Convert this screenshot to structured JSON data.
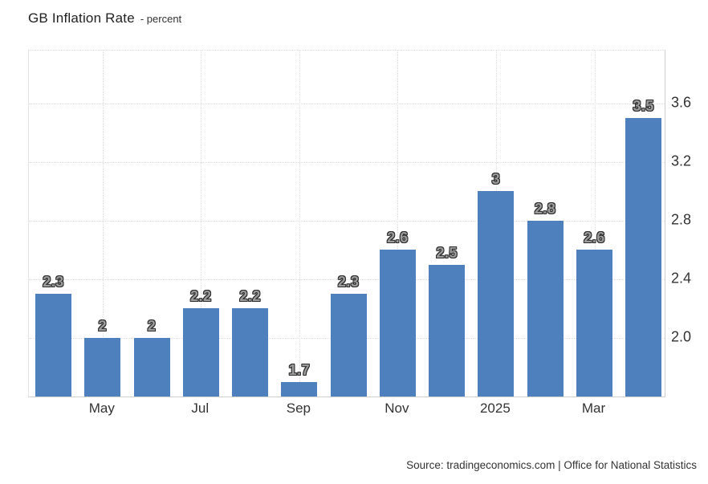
{
  "header": {
    "title": "GB Inflation Rate",
    "subtitle": "- percent"
  },
  "footer": {
    "source": "Source: tradingeconomics.com | Office for National Statistics"
  },
  "colors": {
    "bar": "#4e80bd",
    "grid": "#dcdcdc",
    "axis_text": "#333333",
    "value_label_fill": "#9c9c9c",
    "value_label_outline": "#2d2d2d",
    "background": "#ffffff"
  },
  "chart_data": {
    "type": "bar",
    "title": "GB Inflation Rate",
    "xlabel": "",
    "ylabel": "percent",
    "ylim": [
      1.6,
      3.96
    ],
    "grid": true,
    "legend": "none",
    "y_axis_side": "right",
    "y_ticks": [
      {
        "value": 3.6,
        "label": "3.6"
      },
      {
        "value": 3.2,
        "label": "3.2"
      },
      {
        "value": 2.8,
        "label": "2.8"
      },
      {
        "value": 2.4,
        "label": "2.4"
      },
      {
        "value": 2.0,
        "label": "2.0"
      }
    ],
    "bars": [
      {
        "value": 2.3,
        "label": "2.3",
        "tick": ""
      },
      {
        "value": 2.0,
        "label": "2",
        "tick": "May"
      },
      {
        "value": 2.0,
        "label": "2",
        "tick": ""
      },
      {
        "value": 2.2,
        "label": "2.2",
        "tick": "Jul"
      },
      {
        "value": 2.2,
        "label": "2.2",
        "tick": ""
      },
      {
        "value": 1.7,
        "label": "1.7",
        "tick": "Sep"
      },
      {
        "value": 2.3,
        "label": "2.3",
        "tick": ""
      },
      {
        "value": 2.6,
        "label": "2.6",
        "tick": "Nov"
      },
      {
        "value": 2.5,
        "label": "2.5",
        "tick": ""
      },
      {
        "value": 3.0,
        "label": "3",
        "tick": "2025"
      },
      {
        "value": 2.8,
        "label": "2.8",
        "tick": ""
      },
      {
        "value": 2.6,
        "label": "2.6",
        "tick": "Mar"
      },
      {
        "value": 3.5,
        "label": "3.5",
        "tick": ""
      }
    ]
  }
}
